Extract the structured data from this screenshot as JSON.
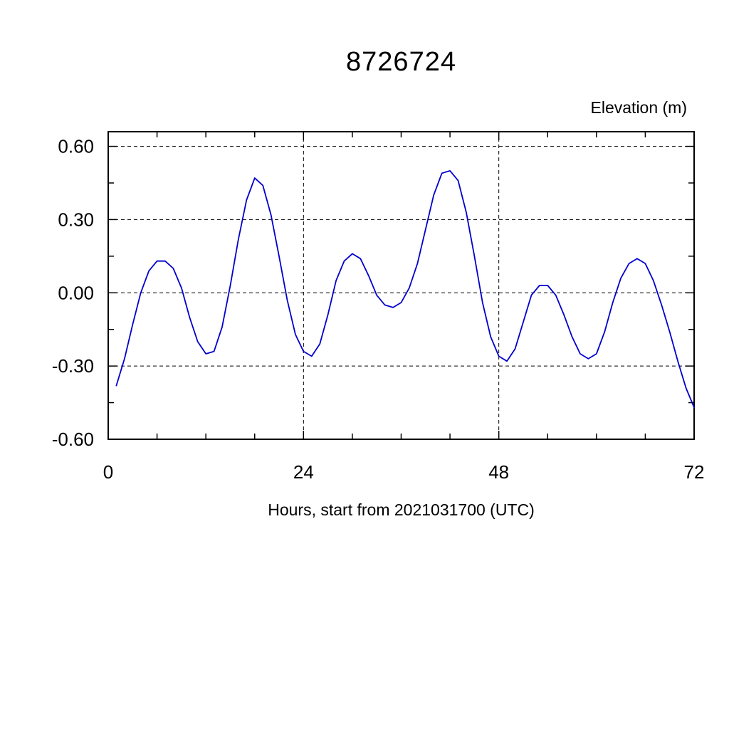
{
  "title": "8726724",
  "ylabel_right": "Elevation (m)",
  "xlabel": "Hours, start from 2021031700 (UTC)",
  "chart_data": {
    "type": "line",
    "title": "8726724",
    "xlabel": "Hours, start from 2021031700 (UTC)",
    "ylabel": "Elevation (m)",
    "xlim": [
      0,
      72
    ],
    "ylim": [
      -0.6,
      0.66
    ],
    "xticks": [
      0,
      24,
      48,
      72
    ],
    "xticklabels": [
      "0",
      "24",
      "48",
      "72"
    ],
    "yticks": [
      -0.6,
      -0.3,
      0,
      0.3,
      0.6
    ],
    "yticklabels": [
      "-0.60",
      "-0.30",
      "0.00",
      "0.30",
      "0.60"
    ],
    "x_gridlines": [
      24,
      48
    ],
    "y_gridlines": [
      -0.3,
      0,
      0.3,
      0.6
    ],
    "x_minor_ticks": [
      6,
      12,
      18,
      30,
      36,
      42,
      54,
      60,
      66
    ],
    "y_minor_ticks": [
      -0.45,
      -0.15,
      0.15,
      0.45
    ],
    "grid": true,
    "legend": false,
    "line_color": "#0000cd",
    "frame_color": "#000000",
    "series": [
      {
        "name": "elevation",
        "x": [
          1,
          2,
          3,
          4,
          5,
          6,
          7,
          8,
          9,
          10,
          11,
          12,
          13,
          14,
          15,
          16,
          17,
          18,
          19,
          20,
          21,
          22,
          23,
          24,
          25,
          26,
          27,
          28,
          29,
          30,
          31,
          32,
          33,
          34,
          35,
          36,
          37,
          38,
          39,
          40,
          41,
          42,
          43,
          44,
          45,
          46,
          47,
          48,
          49,
          50,
          51,
          52,
          53,
          54,
          55,
          56,
          57,
          58,
          59,
          60,
          61,
          62,
          63,
          64,
          65,
          66,
          67,
          68,
          69,
          70,
          71,
          72
        ],
        "y": [
          -0.38,
          -0.27,
          -0.13,
          0.0,
          0.09,
          0.13,
          0.13,
          0.1,
          0.02,
          -0.1,
          -0.2,
          -0.25,
          -0.24,
          -0.14,
          0.03,
          0.22,
          0.38,
          0.47,
          0.44,
          0.32,
          0.15,
          -0.03,
          -0.17,
          -0.24,
          -0.26,
          -0.21,
          -0.09,
          0.05,
          0.13,
          0.16,
          0.14,
          0.07,
          -0.01,
          -0.05,
          -0.06,
          -0.04,
          0.02,
          0.12,
          0.26,
          0.4,
          0.49,
          0.5,
          0.46,
          0.33,
          0.15,
          -0.04,
          -0.18,
          -0.26,
          -0.28,
          -0.23,
          -0.12,
          -0.01,
          0.03,
          0.03,
          -0.01,
          -0.09,
          -0.18,
          -0.25,
          -0.27,
          -0.25,
          -0.16,
          -0.04,
          0.06,
          0.12,
          0.14,
          0.12,
          0.05,
          -0.05,
          -0.16,
          -0.28,
          -0.39,
          -0.47
        ]
      }
    ]
  }
}
